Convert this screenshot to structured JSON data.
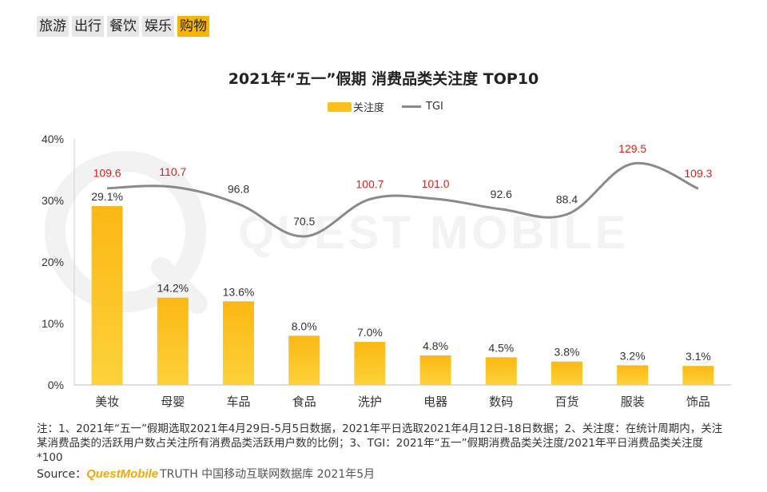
{
  "tabs": [
    {
      "label": "旅游",
      "active": false
    },
    {
      "label": "出行",
      "active": false
    },
    {
      "label": "餐饮",
      "active": false
    },
    {
      "label": "娱乐",
      "active": false
    },
    {
      "label": "购物",
      "active": true
    }
  ],
  "watermark": "QUEST MOBILE",
  "note": "注：1、2021年“五一”假期选取2021年4月29日-5月5日数据，2021年平日选取2021年4月12日-18日数据；2、关注度：在统计周期内，关注某消费品类的活跃用户数占关注所有消费品类活跃用户数的比例；3、TGI：2021年“五一”假期消费品类关注度/2021年平日消费品类关注度*100",
  "source": {
    "prefix": "Source：",
    "brand": "QuestMobile",
    "rest": " TRUTH 中国移动互联网数据库 2021年5月"
  },
  "colors": {
    "bar": "#fbc11a",
    "line": "#8a8a8a",
    "tgi_label_high": "#e0201b",
    "tgi_label_low": "#333333",
    "active_tab": "#f7b500"
  },
  "chart_data": {
    "type": "bar",
    "title": "2021年“五一”假期 消费品类关注度 TOP10",
    "categories": [
      "美妆",
      "母婴",
      "车品",
      "食品",
      "洗护",
      "电器",
      "数码",
      "百货",
      "服装",
      "饰品"
    ],
    "series": [
      {
        "name": "关注度",
        "type": "bar",
        "values": [
          29.1,
          14.2,
          13.6,
          8.0,
          7.0,
          4.8,
          4.5,
          3.8,
          3.2,
          3.1
        ],
        "labels": [
          "29.1%",
          "14.2%",
          "13.6%",
          "8.0%",
          "7.0%",
          "4.8%",
          "4.5%",
          "3.8%",
          "3.2%",
          "3.1%"
        ]
      },
      {
        "name": "TGI",
        "type": "line",
        "values": [
          109.6,
          110.7,
          96.8,
          70.5,
          100.7,
          101.0,
          92.6,
          88.4,
          129.5,
          109.3
        ],
        "labels": [
          "109.6",
          "110.7",
          "96.8",
          "70.5",
          "100.7",
          "101.0",
          "92.6",
          "88.4",
          "129.5",
          "109.3"
        ]
      }
    ],
    "yticks": [
      "0%",
      "10%",
      "20%",
      "30%",
      "40%"
    ],
    "ylim": [
      0,
      40
    ],
    "legend_position": "top-center",
    "grid": false
  }
}
